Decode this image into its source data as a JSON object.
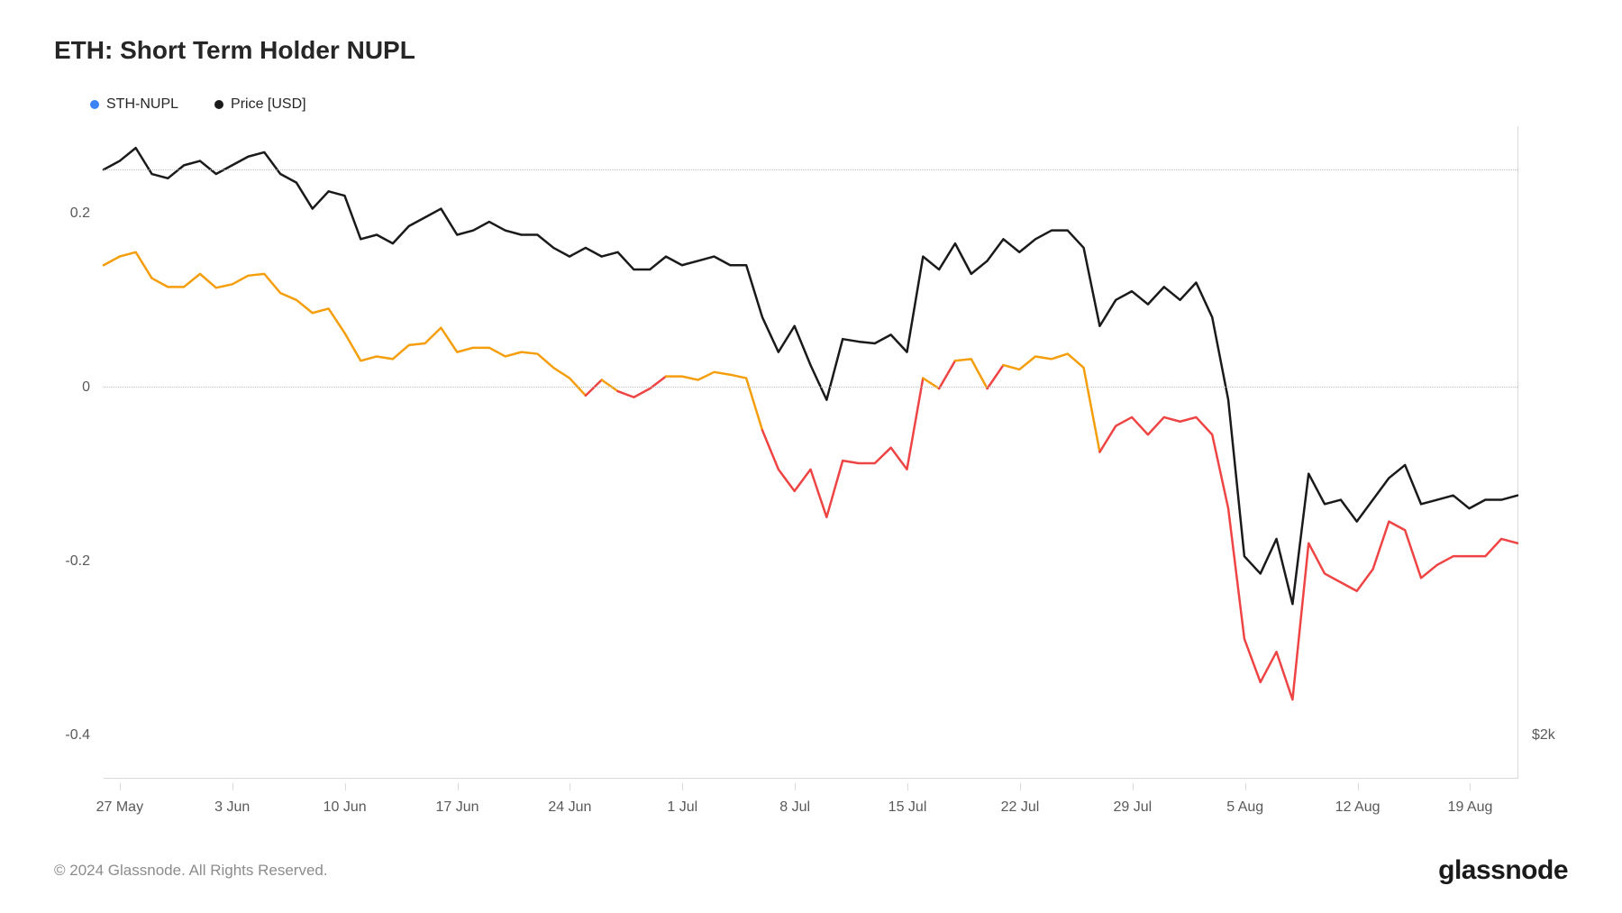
{
  "chart": {
    "type": "line",
    "title": "ETH: Short Term Holder NUPL",
    "title_fontsize": 28,
    "background_color": "#ffffff",
    "grid_color": "#bfbfbf",
    "axis_color": "#d9d9d9",
    "text_color": "#595959",
    "legend": [
      {
        "label": "STH-NUPL",
        "color": "#3b82f6"
      },
      {
        "label": "Price [USD]",
        "color": "#1a1a1a"
      }
    ],
    "y_left": {
      "min": -0.45,
      "max": 0.3,
      "ticks": [
        -0.4,
        -0.2,
        0,
        0.2
      ],
      "tick_labels": [
        "-0.4",
        "-0.2",
        "0",
        "0.2"
      ]
    },
    "y_right": {
      "ticks_at_left_value": [
        -0.4
      ],
      "tick_labels": [
        "$2k"
      ]
    },
    "gridlines_at": [
      0,
      0.25
    ],
    "x": {
      "count": 89,
      "tick_positions": [
        1,
        8,
        15,
        22,
        29,
        36,
        43,
        50,
        57,
        64,
        71,
        78,
        85
      ],
      "tick_labels": [
        "27 May",
        "3 Jun",
        "10 Jun",
        "17 Jun",
        "24 Jun",
        "1 Jul",
        "8 Jul",
        "15 Jul",
        "22 Jul",
        "29 Jul",
        "5 Aug",
        "12 Aug",
        "19 Aug"
      ]
    },
    "series_price": {
      "color": "#1a1a1a",
      "stroke_width": 2.5,
      "values": [
        0.25,
        0.26,
        0.275,
        0.245,
        0.24,
        0.255,
        0.26,
        0.245,
        0.255,
        0.265,
        0.27,
        0.245,
        0.235,
        0.205,
        0.225,
        0.22,
        0.17,
        0.175,
        0.165,
        0.185,
        0.195,
        0.205,
        0.175,
        0.18,
        0.19,
        0.18,
        0.175,
        0.175,
        0.16,
        0.15,
        0.16,
        0.15,
        0.155,
        0.135,
        0.135,
        0.15,
        0.14,
        0.145,
        0.15,
        0.14,
        0.14,
        0.08,
        0.04,
        0.07,
        0.025,
        -0.015,
        0.055,
        0.052,
        0.05,
        0.06,
        0.04,
        0.15,
        0.135,
        0.165,
        0.13,
        0.145,
        0.17,
        0.155,
        0.17,
        0.18,
        0.18,
        0.16,
        0.07,
        0.1,
        0.11,
        0.095,
        0.115,
        0.1,
        0.12,
        0.08,
        -0.015,
        -0.195,
        -0.215,
        -0.175,
        -0.25,
        -0.1,
        -0.135,
        -0.13,
        -0.155,
        -0.13,
        -0.105,
        -0.09,
        -0.135,
        -0.13,
        -0.125,
        -0.14,
        -0.13,
        -0.13,
        -0.125
      ]
    },
    "series_nupl": {
      "stroke_width": 2.5,
      "color_positive": "#f59e0b",
      "color_negative": "#ef4444",
      "values": [
        0.14,
        0.15,
        0.155,
        0.125,
        0.115,
        0.115,
        0.13,
        0.114,
        0.118,
        0.128,
        0.13,
        0.108,
        0.1,
        0.085,
        0.09,
        0.062,
        0.03,
        0.035,
        0.032,
        0.048,
        0.05,
        0.068,
        0.04,
        0.045,
        0.045,
        0.035,
        0.04,
        0.038,
        0.022,
        0.01,
        -0.01,
        0.008,
        -0.005,
        -0.012,
        -0.002,
        0.012,
        0.012,
        0.008,
        0.017,
        0.014,
        0.01,
        -0.05,
        -0.095,
        -0.12,
        -0.095,
        -0.15,
        -0.085,
        -0.088,
        -0.088,
        -0.07,
        -0.095,
        0.01,
        -0.002,
        0.03,
        0.032,
        -0.002,
        0.025,
        0.02,
        0.035,
        0.032,
        0.038,
        0.022,
        -0.075,
        -0.045,
        -0.035,
        -0.055,
        -0.035,
        -0.04,
        -0.035,
        -0.055,
        -0.14,
        -0.29,
        -0.34,
        -0.305,
        -0.36,
        -0.18,
        -0.215,
        -0.225,
        -0.235,
        -0.21,
        -0.155,
        -0.165,
        -0.22,
        -0.205,
        -0.195,
        -0.195,
        -0.195,
        -0.175,
        -0.18
      ]
    }
  },
  "footer": {
    "copyright": "© 2024 Glassnode. All Rights Reserved.",
    "brand": "glassnode"
  }
}
